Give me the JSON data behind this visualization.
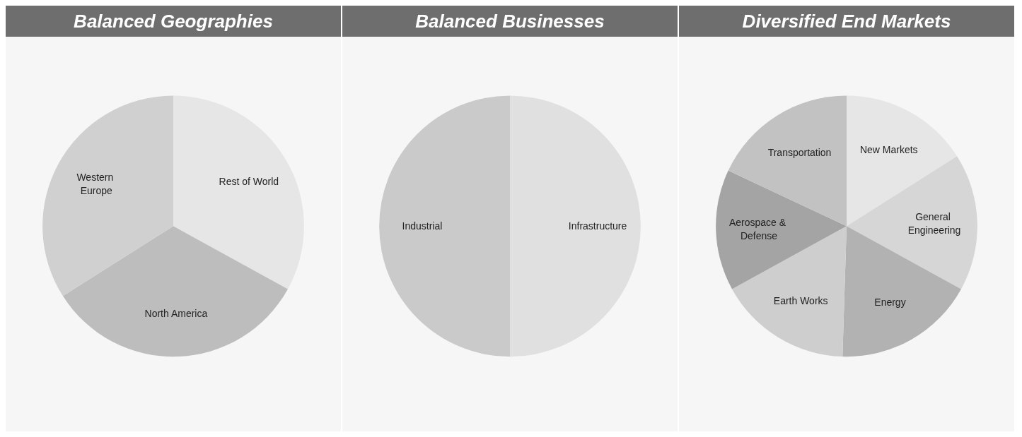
{
  "chart_data": [
    {
      "type": "pie",
      "title": "Balanced Geographies",
      "categories": [
        "Rest of World",
        "North America",
        "Western Europe"
      ],
      "values": [
        33,
        33,
        34
      ],
      "colors": [
        "#e6e6e6",
        "#bdbdbd",
        "#d0d0d0"
      ]
    },
    {
      "type": "pie",
      "title": "Balanced Businesses",
      "categories": [
        "Infrastructure",
        "Industrial"
      ],
      "values": [
        50,
        50
      ],
      "colors": [
        "#e0e0e0",
        "#cacaca"
      ]
    },
    {
      "type": "pie",
      "title": "Diversified End Markets",
      "categories": [
        "New Markets",
        "General Engineering",
        "Energy",
        "Earth Works",
        "Aerospace & Defense",
        "Transportation"
      ],
      "values": [
        16,
        17,
        17.5,
        16.5,
        15,
        18
      ],
      "colors": [
        "#e6e6e6",
        "#d6d6d6",
        "#b2b2b2",
        "#cecece",
        "#a4a4a4",
        "#c2c2c2"
      ]
    }
  ]
}
